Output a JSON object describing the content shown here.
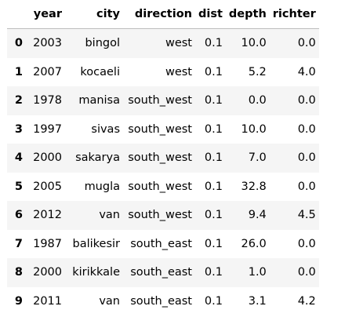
{
  "table": {
    "columns": [
      "year",
      "city",
      "direction",
      "dist",
      "depth",
      "richter"
    ],
    "rows": [
      {
        "index": "0",
        "cells": [
          "2003",
          "bingol",
          "west",
          "0.1",
          "10.0",
          "0.0"
        ]
      },
      {
        "index": "1",
        "cells": [
          "2007",
          "kocaeli",
          "west",
          "0.1",
          "5.2",
          "4.0"
        ]
      },
      {
        "index": "2",
        "cells": [
          "1978",
          "manisa",
          "south_west",
          "0.1",
          "0.0",
          "0.0"
        ]
      },
      {
        "index": "3",
        "cells": [
          "1997",
          "sivas",
          "south_west",
          "0.1",
          "10.0",
          "0.0"
        ]
      },
      {
        "index": "4",
        "cells": [
          "2000",
          "sakarya",
          "south_west",
          "0.1",
          "7.0",
          "0.0"
        ]
      },
      {
        "index": "5",
        "cells": [
          "2005",
          "mugla",
          "south_west",
          "0.1",
          "32.8",
          "0.0"
        ]
      },
      {
        "index": "6",
        "cells": [
          "2012",
          "van",
          "south_west",
          "0.1",
          "9.4",
          "4.5"
        ]
      },
      {
        "index": "7",
        "cells": [
          "1987",
          "balikesir",
          "south_east",
          "0.1",
          "26.0",
          "0.0"
        ]
      },
      {
        "index": "8",
        "cells": [
          "2000",
          "kirikkale",
          "south_east",
          "0.1",
          "1.0",
          "0.0"
        ]
      },
      {
        "index": "9",
        "cells": [
          "2011",
          "van",
          "south_east",
          "0.1",
          "3.1",
          "4.2"
        ]
      }
    ]
  }
}
